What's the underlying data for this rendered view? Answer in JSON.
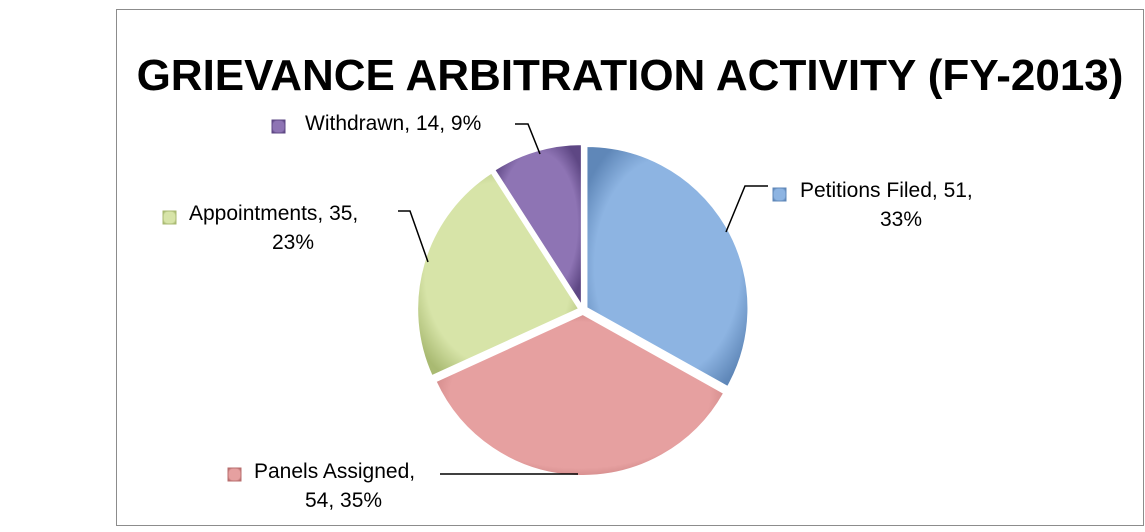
{
  "chart_data": {
    "type": "pie",
    "title": "GRIEVANCE ARBITRATION ACTIVITY (FY-2013)",
    "slices": [
      {
        "label": "Petitions Filed",
        "value": 51,
        "percent": "33%",
        "color": "#8DB4E2",
        "dark": "#5F87B8",
        "label_lines": [
          "Petitions Filed, 51,",
          "33%"
        ]
      },
      {
        "label": "Panels Assigned",
        "value": 54,
        "percent": "35%",
        "color": "#E6A0A0",
        "dark": "#B86E6E",
        "label_lines": [
          "Panels Assigned,",
          "54, 35%"
        ]
      },
      {
        "label": "Appointments",
        "value": 35,
        "percent": "23%",
        "color": "#D7E4A8",
        "dark": "#A9BA72",
        "label_lines": [
          "Appointments, 35,",
          "23%"
        ]
      },
      {
        "label": "Withdrawn",
        "value": 14,
        "percent": "9%",
        "color": "#8E74B4",
        "dark": "#5E4784",
        "label_lines": [
          "Withdrawn, 14, 9%"
        ]
      }
    ],
    "legend": "none",
    "data_labels": "outside-with-leaders"
  }
}
